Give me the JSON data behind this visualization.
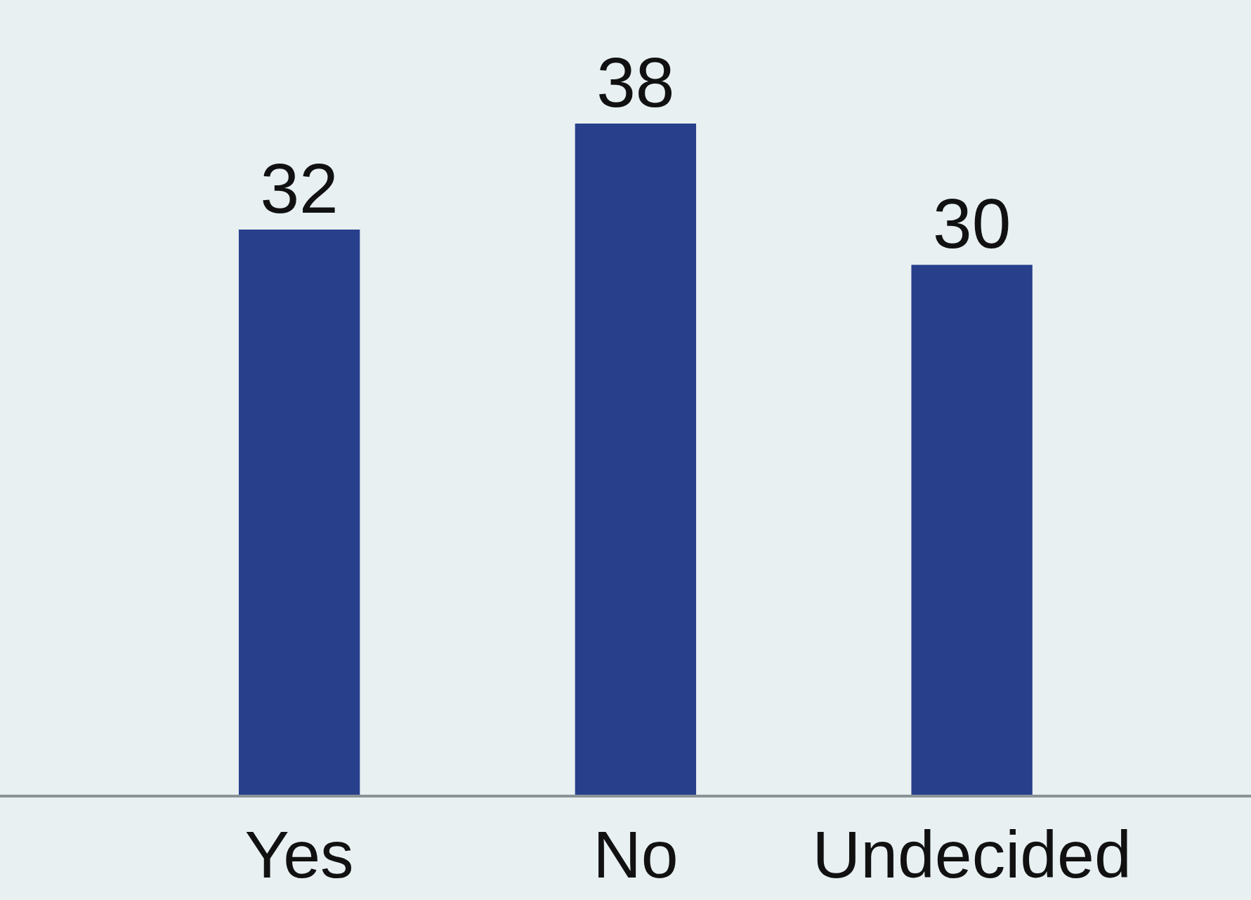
{
  "chart_data": {
    "type": "bar",
    "categories": [
      "Yes",
      "No",
      "Undecided"
    ],
    "values": [
      32,
      38,
      30
    ],
    "color": "#283f8c",
    "ylim": [
      0,
      45
    ],
    "data_labels": true,
    "tick_labels": "x",
    "grid": false,
    "legend": false
  }
}
